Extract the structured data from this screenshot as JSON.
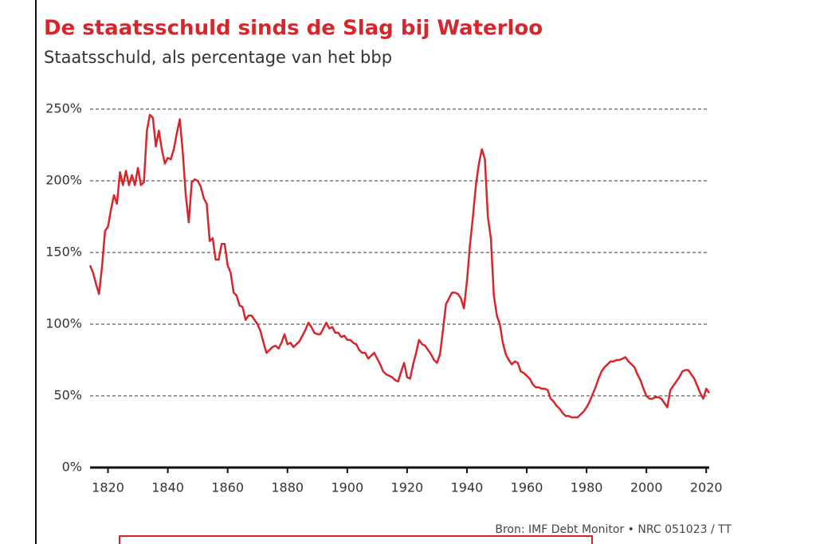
{
  "chart_data": {
    "type": "line",
    "title": "De staatsschuld sinds de Slag bij Waterloo",
    "subtitle": "Staatsschuld, als percentage van het bbp",
    "source": "Bron: IMF Debt Monitor • NRC 051023 / TT",
    "x": [
      1814,
      1815,
      1816,
      1817,
      1818,
      1819,
      1820,
      1821,
      1822,
      1823,
      1824,
      1825,
      1826,
      1827,
      1828,
      1829,
      1830,
      1831,
      1832,
      1833,
      1834,
      1835,
      1836,
      1837,
      1838,
      1839,
      1840,
      1841,
      1842,
      1843,
      1844,
      1845,
      1846,
      1847,
      1848,
      1849,
      1850,
      1851,
      1852,
      1853,
      1854,
      1855,
      1856,
      1857,
      1858,
      1859,
      1860,
      1861,
      1862,
      1863,
      1864,
      1865,
      1866,
      1867,
      1868,
      1869,
      1870,
      1871,
      1872,
      1873,
      1874,
      1875,
      1876,
      1877,
      1878,
      1879,
      1880,
      1881,
      1882,
      1883,
      1884,
      1885,
      1886,
      1887,
      1888,
      1889,
      1890,
      1891,
      1892,
      1893,
      1894,
      1895,
      1896,
      1897,
      1898,
      1899,
      1900,
      1901,
      1902,
      1903,
      1904,
      1905,
      1906,
      1907,
      1908,
      1909,
      1910,
      1911,
      1912,
      1913,
      1914,
      1915,
      1916,
      1917,
      1918,
      1919,
      1920,
      1921,
      1922,
      1923,
      1924,
      1925,
      1926,
      1927,
      1928,
      1929,
      1930,
      1931,
      1932,
      1933,
      1934,
      1935,
      1936,
      1937,
      1938,
      1939,
      1940,
      1941,
      1942,
      1943,
      1944,
      1945,
      1946,
      1947,
      1948,
      1949,
      1950,
      1951,
      1952,
      1953,
      1954,
      1955,
      1956,
      1957,
      1958,
      1959,
      1960,
      1961,
      1962,
      1963,
      1964,
      1965,
      1966,
      1967,
      1968,
      1969,
      1970,
      1971,
      1972,
      1973,
      1974,
      1975,
      1976,
      1977,
      1978,
      1979,
      1980,
      1981,
      1982,
      1983,
      1984,
      1985,
      1986,
      1987,
      1988,
      1989,
      1990,
      1991,
      1992,
      1993,
      1994,
      1995,
      1996,
      1997,
      1998,
      1999,
      2000,
      2001,
      2002,
      2003,
      2004,
      2005,
      2006,
      2007,
      2008,
      2009,
      2010,
      2011,
      2012,
      2013,
      2014,
      2015,
      2016,
      2017,
      2018,
      2019,
      2020,
      2021
    ],
    "series": [
      {
        "name": "Staatsschuld",
        "color": "#d7262b",
        "values": [
          141,
          136,
          128,
          121,
          140,
          165,
          168,
          180,
          190,
          184,
          206,
          197,
          207,
          197,
          204,
          197,
          209,
          197,
          199,
          235,
          246,
          244,
          224,
          235,
          222,
          212,
          216,
          215,
          222,
          233,
          243,
          220,
          190,
          171,
          199,
          201,
          200,
          196,
          188,
          184,
          158,
          160,
          145,
          145,
          156,
          156,
          141,
          136,
          122,
          120,
          113,
          112,
          103,
          106,
          106,
          103,
          100,
          95,
          87,
          80,
          82,
          84,
          85,
          83,
          87,
          93,
          86,
          87,
          84,
          86,
          88,
          92,
          96,
          101,
          98,
          94,
          93,
          93,
          97,
          101,
          97,
          98,
          94,
          94,
          91,
          92,
          89,
          89,
          87,
          86,
          82,
          80,
          80,
          76,
          78,
          80,
          76,
          72,
          67,
          65,
          64,
          63,
          61,
          60,
          67,
          73,
          63,
          62,
          72,
          80,
          89,
          86,
          85,
          82,
          79,
          75,
          73,
          79,
          96,
          114,
          118,
          122,
          122,
          121,
          118,
          111,
          130,
          155,
          175,
          197,
          212,
          222,
          215,
          175,
          160,
          120,
          106,
          100,
          87,
          79,
          75,
          72,
          74,
          73,
          67,
          66,
          64,
          62,
          58,
          56,
          56,
          55,
          55,
          54,
          48,
          46,
          43,
          41,
          38,
          36,
          36,
          35,
          35,
          35,
          37,
          39,
          42,
          46,
          51,
          56,
          62,
          67,
          70,
          72,
          74,
          74,
          75,
          75,
          76,
          77,
          74,
          72,
          70,
          65,
          61,
          55,
          50,
          48,
          48,
          49,
          49,
          48,
          45,
          42,
          54,
          57,
          60,
          63,
          67,
          68,
          68,
          65,
          62,
          57,
          52,
          48,
          55,
          52
        ]
      }
    ],
    "xlim": [
      1814,
      2021
    ],
    "xticks": [
      1820,
      1840,
      1860,
      1880,
      1900,
      1920,
      1940,
      1960,
      1980,
      2000,
      2020
    ],
    "ylim": [
      0,
      250
    ],
    "yticks": [
      {
        "value": 0,
        "label": "0%"
      },
      {
        "value": 50,
        "label": "50%"
      },
      {
        "value": 100,
        "label": "100%"
      },
      {
        "value": 150,
        "label": "150%"
      },
      {
        "value": 200,
        "label": "200%"
      },
      {
        "value": 250,
        "label": "250%"
      }
    ],
    "grid": true
  }
}
